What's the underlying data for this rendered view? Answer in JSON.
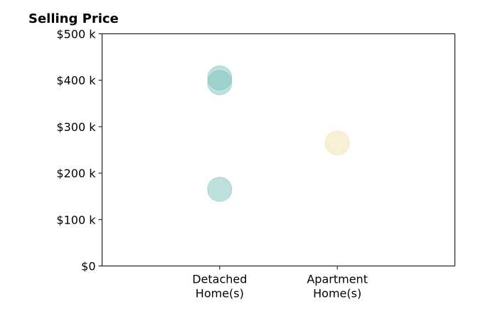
{
  "chart_data": {
    "type": "scatter",
    "title": "Selling Price",
    "xlabel": "",
    "ylabel": "",
    "categories": [
      "Detached\nHome(s)",
      "Apartment\nHome(s)"
    ],
    "xlim": [
      0,
      3
    ],
    "ylim": [
      0,
      500000
    ],
    "yticks": [
      0,
      100000,
      200000,
      300000,
      400000,
      500000
    ],
    "ytick_labels": [
      "$0",
      "$100 k",
      "$200 k",
      "$300 k",
      "$400 k",
      "$500 k"
    ],
    "grid": false,
    "points": [
      {
        "category": "Detached\nHome(s)",
        "x": 1,
        "y": 405000,
        "color": "#7fc4bc"
      },
      {
        "category": "Detached\nHome(s)",
        "x": 1,
        "y": 395000,
        "color": "#7fc4bc"
      },
      {
        "category": "Detached\nHome(s)",
        "x": 1,
        "y": 165000,
        "color": "#7fc4bc"
      },
      {
        "category": "Apartment\nHome(s)",
        "x": 2,
        "y": 265000,
        "color": "#f3dfac"
      }
    ],
    "marker_opacity": 0.5
  }
}
